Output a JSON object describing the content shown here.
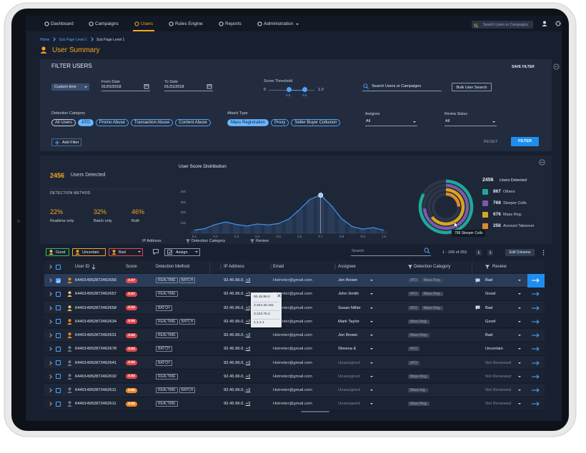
{
  "nav": {
    "items": [
      "Dashboard",
      "Campaigns",
      "Users",
      "Rules Engine",
      "Reports",
      "Administration"
    ],
    "search": "Search Users or Campaigns"
  },
  "breadcrumb": [
    "Home",
    "Sub Page Level 1",
    "Sub Page Level 1"
  ],
  "page_title": "User Summary",
  "filter": {
    "title": "FILTER USERS",
    "save": "SAVE FILTER",
    "time": "Custom time",
    "from_label": "From Date",
    "from": "01/01/2018",
    "to_label": "To Date",
    "to": "01/31/2018",
    "score_label": "Score Threshold",
    "score_min": "0",
    "score_max": "1.0",
    "score_lo": "0.5",
    "score_hi": "0.8",
    "search": "Search Users or Campaigns",
    "bulk": "Bulk User Search",
    "detection_label": "Detection Category",
    "detection_chips": [
      "All Users",
      "ATO",
      "Promo Abuse",
      "Transaction Abuse",
      "Content Abuse"
    ],
    "attack_label": "Attack Type",
    "attack_chips": [
      "Mass Registration",
      "Proxy",
      "Seller Buyer Collusion"
    ],
    "assignee_label": "Assignee",
    "assignee_value": "All",
    "review_label": "Review Status",
    "review_value": "All",
    "add_filter": "Add Filter",
    "reset": "RESET",
    "apply": "FILTER"
  },
  "summary": {
    "count": "2456",
    "count_label": "Users Detected",
    "method_label": "DETECTION METHOD",
    "methods": [
      {
        "value": "22%",
        "label": "Realtime only"
      },
      {
        "value": "32%",
        "label": "Batch only"
      },
      {
        "value": "46%",
        "label": "Both"
      }
    ]
  },
  "chart_data": [
    {
      "type": "line",
      "title": "User Score Distribution",
      "x": [
        0.1,
        0.15,
        0.2,
        0.25,
        0.3,
        0.35,
        0.4,
        0.45,
        0.5,
        0.55,
        0.6,
        0.65,
        0.7,
        0.75,
        0.8,
        0.85,
        0.9,
        0.95,
        1.0
      ],
      "values": [
        30,
        45,
        85,
        110,
        85,
        70,
        90,
        80,
        95,
        140,
        230,
        330,
        370,
        270,
        140,
        65,
        40,
        55,
        30
      ],
      "color": "#3d8fe8",
      "xlim": [
        0.08,
        1.02
      ],
      "ylim": [
        0,
        450
      ],
      "xticks": [
        0.1,
        0.2,
        0.3,
        0.4,
        0.5,
        0.6,
        0.7,
        0.8,
        0.9,
        {
          "value": 1,
          "label": "1.0"
        }
      ],
      "yticks": [
        100,
        200,
        300,
        400
      ]
    },
    {
      "type": "donut",
      "total": 2456,
      "total_label": "Users Detected",
      "categories": [
        "Others",
        "Sleeper Cells",
        "Mass Reg.",
        "Account Takeover"
      ],
      "values": [
        867,
        768,
        676,
        256
      ],
      "colors": [
        "#1fa89a",
        "#7a5aa8",
        "#d9a520",
        "#e08a2a"
      ]
    }
  ],
  "column_filters": [
    "IP Address",
    "Detection Category",
    "Review"
  ],
  "toolbar": {
    "review_buttons": [
      "Good",
      "Uncertain",
      "Bad"
    ],
    "assign": "Assign",
    "search": "Search",
    "pagination": "1 - 100 of 253",
    "edit_columns": "Edit Columns"
  },
  "table": {
    "headers": [
      "User ID",
      "Score",
      "Detection Method",
      "IP Address",
      "Email",
      "Assignee",
      "Detection Category",
      "Review"
    ],
    "rows": [
      {
        "id": "644014952872462656",
        "score": "0.97",
        "methods": [
          "REALTIME",
          "BATCH"
        ],
        "ip": "92.45.96.0,",
        "ip_more": "+3",
        "email": "Hstrreter@gmail.com",
        "assignee": "Jon Brown",
        "categories": [
          "ATO",
          "Mass Reg."
        ],
        "review": "Bad"
      },
      {
        "id": "644014952872462657",
        "score": "0.97",
        "methods": [
          "REALTIME"
        ],
        "ip": "92.45.96.0,",
        "ip_more": "+3",
        "email": "Hstrreter@gmail.com",
        "assignee": "John Smith",
        "categories": [
          "ATO",
          "Mass Reg."
        ],
        "review": "Good"
      },
      {
        "id": "644014952872462658",
        "score": "0.94",
        "methods": [
          "BATCH"
        ],
        "ip": "92.45.96.0,",
        "ip_more": "+3",
        "email": "Hstrreter@gmail.com",
        "assignee": "Susan Miller",
        "categories": [
          "ATO",
          "Mass Reg."
        ],
        "review": "Bad"
      },
      {
        "id": "644014952872462634",
        "score": "0.94",
        "methods": [
          "REALTIME",
          "BATCH"
        ],
        "ip": "92.45.96.0,",
        "ip_more": "+3",
        "email": "Hstrreter@gmail.com",
        "assignee": "Mark Taylor",
        "categories": [
          "Mass Reg."
        ],
        "review": "Good"
      },
      {
        "id": "644014952872462631",
        "score": "0.94",
        "methods": [
          "REALTIME"
        ],
        "ip": "92.45.96.0,",
        "ip_more": "+3",
        "email": "Hstrreter@gmail.com",
        "assignee": "Jon Brown",
        "categories": [
          "Mass Reg."
        ],
        "review": "Bad"
      },
      {
        "id": "644014952872462678",
        "score": "0.93",
        "methods": [
          "BATCH"
        ],
        "ip": "92.45.96.0,",
        "ip_more": "+3",
        "email": "Hstrreter@gmail.com",
        "assignee": "Sheena E",
        "categories": [
          "ATO"
        ],
        "review": "Uncertain"
      },
      {
        "id": "644014952872462641",
        "score": "0.84",
        "methods": [
          "BATCH"
        ],
        "ip": "92.45.96.0,",
        "ip_more": "+3",
        "email": "Hstrreter@gmail.com",
        "assignee": "Unassigned",
        "categories": [
          "ATO"
        ],
        "review": "Not Reviewed"
      },
      {
        "id": "644014952872462632",
        "score": "0.82",
        "methods": [
          "REALTIME"
        ],
        "ip": "92.45.96.0,",
        "ip_more": "+3",
        "email": "Hstrreter@gmail.com",
        "assignee": "Unassigned",
        "categories": [
          "Mass Reg."
        ],
        "review": "Not Reviewed"
      },
      {
        "id": "644014952872462611",
        "score": "0.80",
        "methods": [
          "REALTIME",
          "BATCH"
        ],
        "ip": "92.45.96.0,",
        "ip_more": "+3",
        "email": "Hstrreter@gmail.com",
        "assignee": "Unassigned",
        "categories": [
          "Mass reg."
        ],
        "review": "Not Reviewed"
      },
      {
        "id": "644014952872462611",
        "score": "0.80",
        "methods": [
          "REALTIME"
        ],
        "ip": "92.45.96.0,",
        "ip_more": "+3",
        "email": "Hstrreter@gmail.com",
        "assignee": "Unassigned",
        "categories": [
          "Mass Reg."
        ],
        "review": "Not Reviewed"
      }
    ]
  },
  "ip_popup": [
    "92.45.96.0",
    "3.204.40.161",
    "3.123.76.2",
    "1.1.1.1"
  ]
}
